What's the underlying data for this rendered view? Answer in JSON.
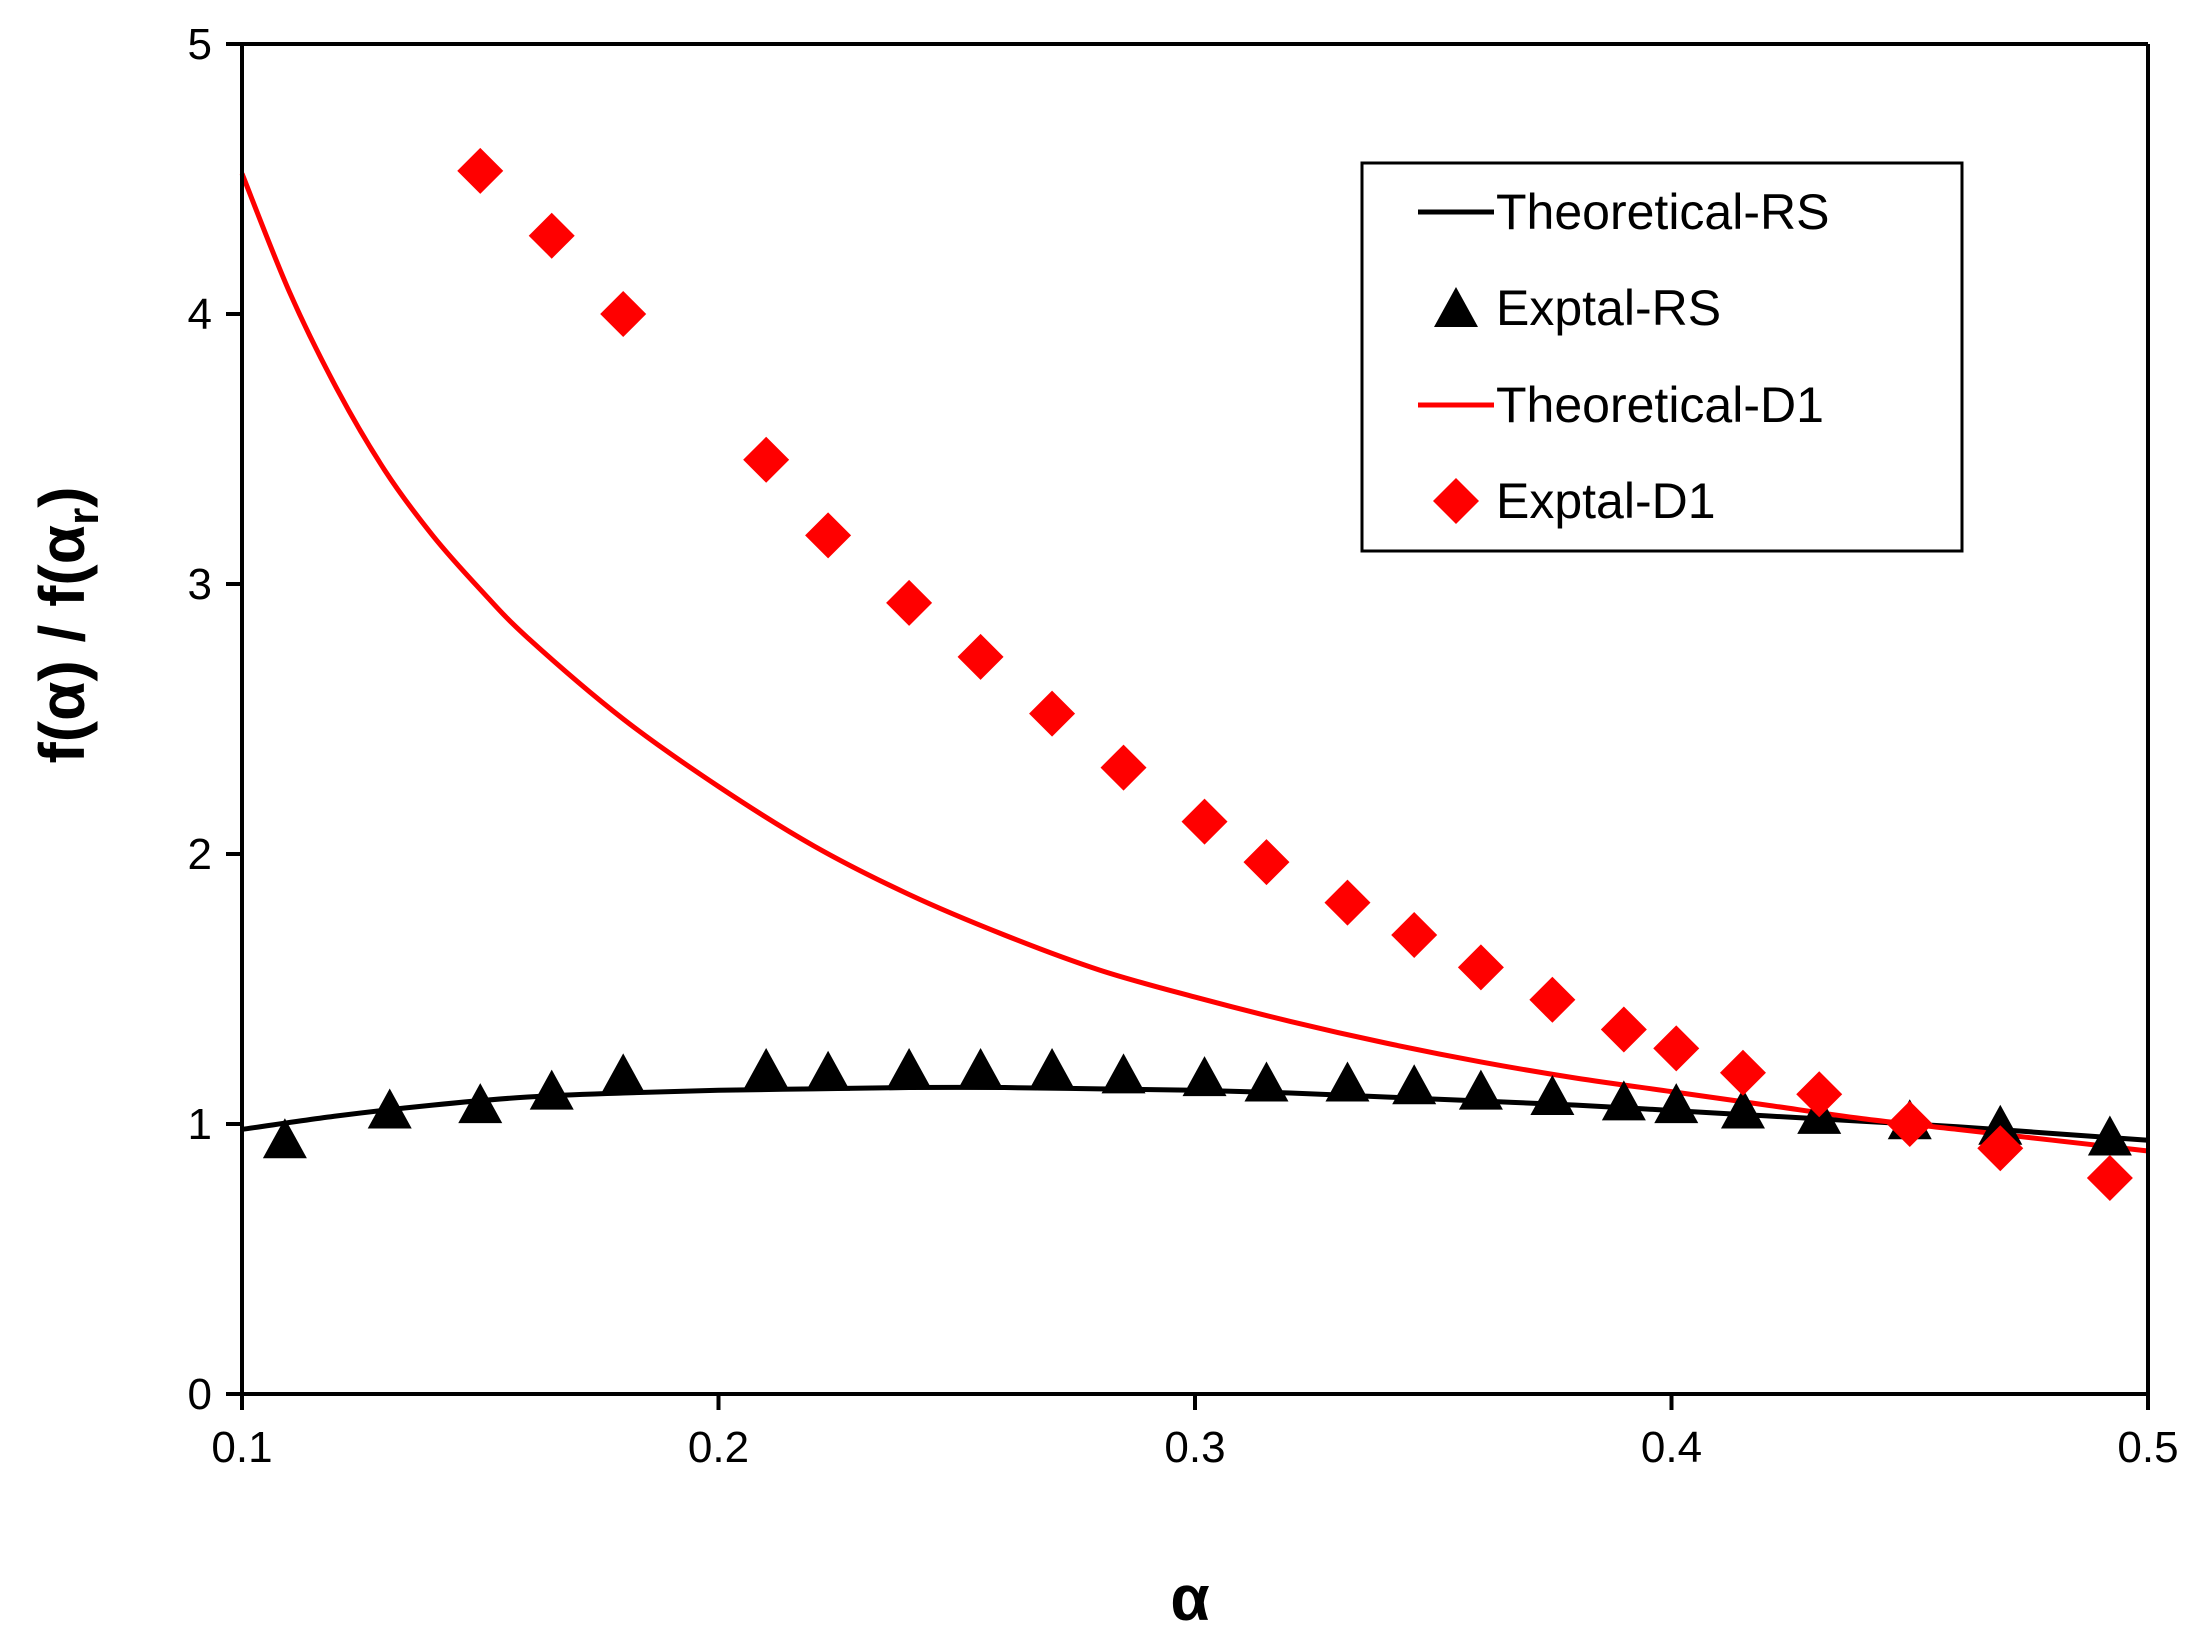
{
  "chart_data": {
    "type": "line+scatter",
    "title": "",
    "xlabel": "α",
    "ylabel_parts": [
      "f(α) / f(α",
      "r",
      ")"
    ],
    "xlim": [
      0.1,
      0.5
    ],
    "ylim": [
      0,
      5
    ],
    "xticks": [
      0.1,
      0.2,
      0.3,
      0.4,
      0.5
    ],
    "xtick_labels": [
      "0.1",
      "0.2",
      "0.3",
      "0.4",
      "0.5"
    ],
    "yticks": [
      0,
      1,
      2,
      3,
      4,
      5
    ],
    "ytick_labels": [
      "0",
      "1",
      "2",
      "3",
      "4",
      "5"
    ],
    "grid": false,
    "legend_position": "top-right",
    "series": [
      {
        "name": "Theoretical-RS",
        "kind": "line",
        "color": "#000000",
        "x": [
          0.1,
          0.12,
          0.14,
          0.16,
          0.18,
          0.2,
          0.22,
          0.24,
          0.26,
          0.28,
          0.3,
          0.32,
          0.34,
          0.36,
          0.38,
          0.4,
          0.42,
          0.44,
          0.46,
          0.48,
          0.5
        ],
        "y": [
          0.98,
          1.03,
          1.07,
          1.1,
          1.115,
          1.125,
          1.13,
          1.135,
          1.135,
          1.13,
          1.125,
          1.115,
          1.1,
          1.085,
          1.07,
          1.05,
          1.03,
          1.01,
          0.99,
          0.965,
          0.94
        ]
      },
      {
        "name": "Exptal-RS",
        "kind": "scatter",
        "marker": "triangle",
        "color": "#000000",
        "x": [
          0.109,
          0.131,
          0.15,
          0.165,
          0.18,
          0.21,
          0.223,
          0.24,
          0.255,
          0.27,
          0.285,
          0.302,
          0.315,
          0.332,
          0.346,
          0.36,
          0.375,
          0.39,
          0.401,
          0.415,
          0.431,
          0.45,
          0.469,
          0.492
        ],
        "y": [
          0.94,
          1.05,
          1.07,
          1.12,
          1.18,
          1.2,
          1.19,
          1.2,
          1.2,
          1.2,
          1.18,
          1.17,
          1.15,
          1.15,
          1.14,
          1.12,
          1.1,
          1.08,
          1.07,
          1.05,
          1.03,
          1.01,
          0.99,
          0.95
        ]
      },
      {
        "name": "Theoretical-D1",
        "kind": "line",
        "color": "#ff0000",
        "x": [
          0.1,
          0.11,
          0.12,
          0.13,
          0.14,
          0.15,
          0.16,
          0.18,
          0.2,
          0.22,
          0.24,
          0.26,
          0.28,
          0.3,
          0.32,
          0.34,
          0.36,
          0.38,
          0.4,
          0.42,
          0.44,
          0.46,
          0.48,
          0.5
        ],
        "y": [
          4.52,
          4.08,
          3.72,
          3.42,
          3.18,
          2.98,
          2.8,
          2.5,
          2.25,
          2.03,
          1.85,
          1.7,
          1.57,
          1.47,
          1.38,
          1.3,
          1.23,
          1.17,
          1.12,
          1.07,
          1.02,
          0.98,
          0.94,
          0.9
        ]
      },
      {
        "name": "Exptal-D1",
        "kind": "scatter",
        "marker": "diamond",
        "color": "#ff0000",
        "x": [
          0.15,
          0.165,
          0.18,
          0.21,
          0.223,
          0.24,
          0.255,
          0.27,
          0.285,
          0.302,
          0.315,
          0.332,
          0.346,
          0.36,
          0.375,
          0.39,
          0.401,
          0.415,
          0.431,
          0.45,
          0.469,
          0.492
        ],
        "y": [
          4.53,
          4.29,
          4.0,
          3.46,
          3.18,
          2.93,
          2.73,
          2.52,
          2.32,
          2.12,
          1.97,
          1.82,
          1.7,
          1.58,
          1.46,
          1.35,
          1.28,
          1.19,
          1.11,
          1.0,
          0.91,
          0.8
        ]
      }
    ]
  }
}
